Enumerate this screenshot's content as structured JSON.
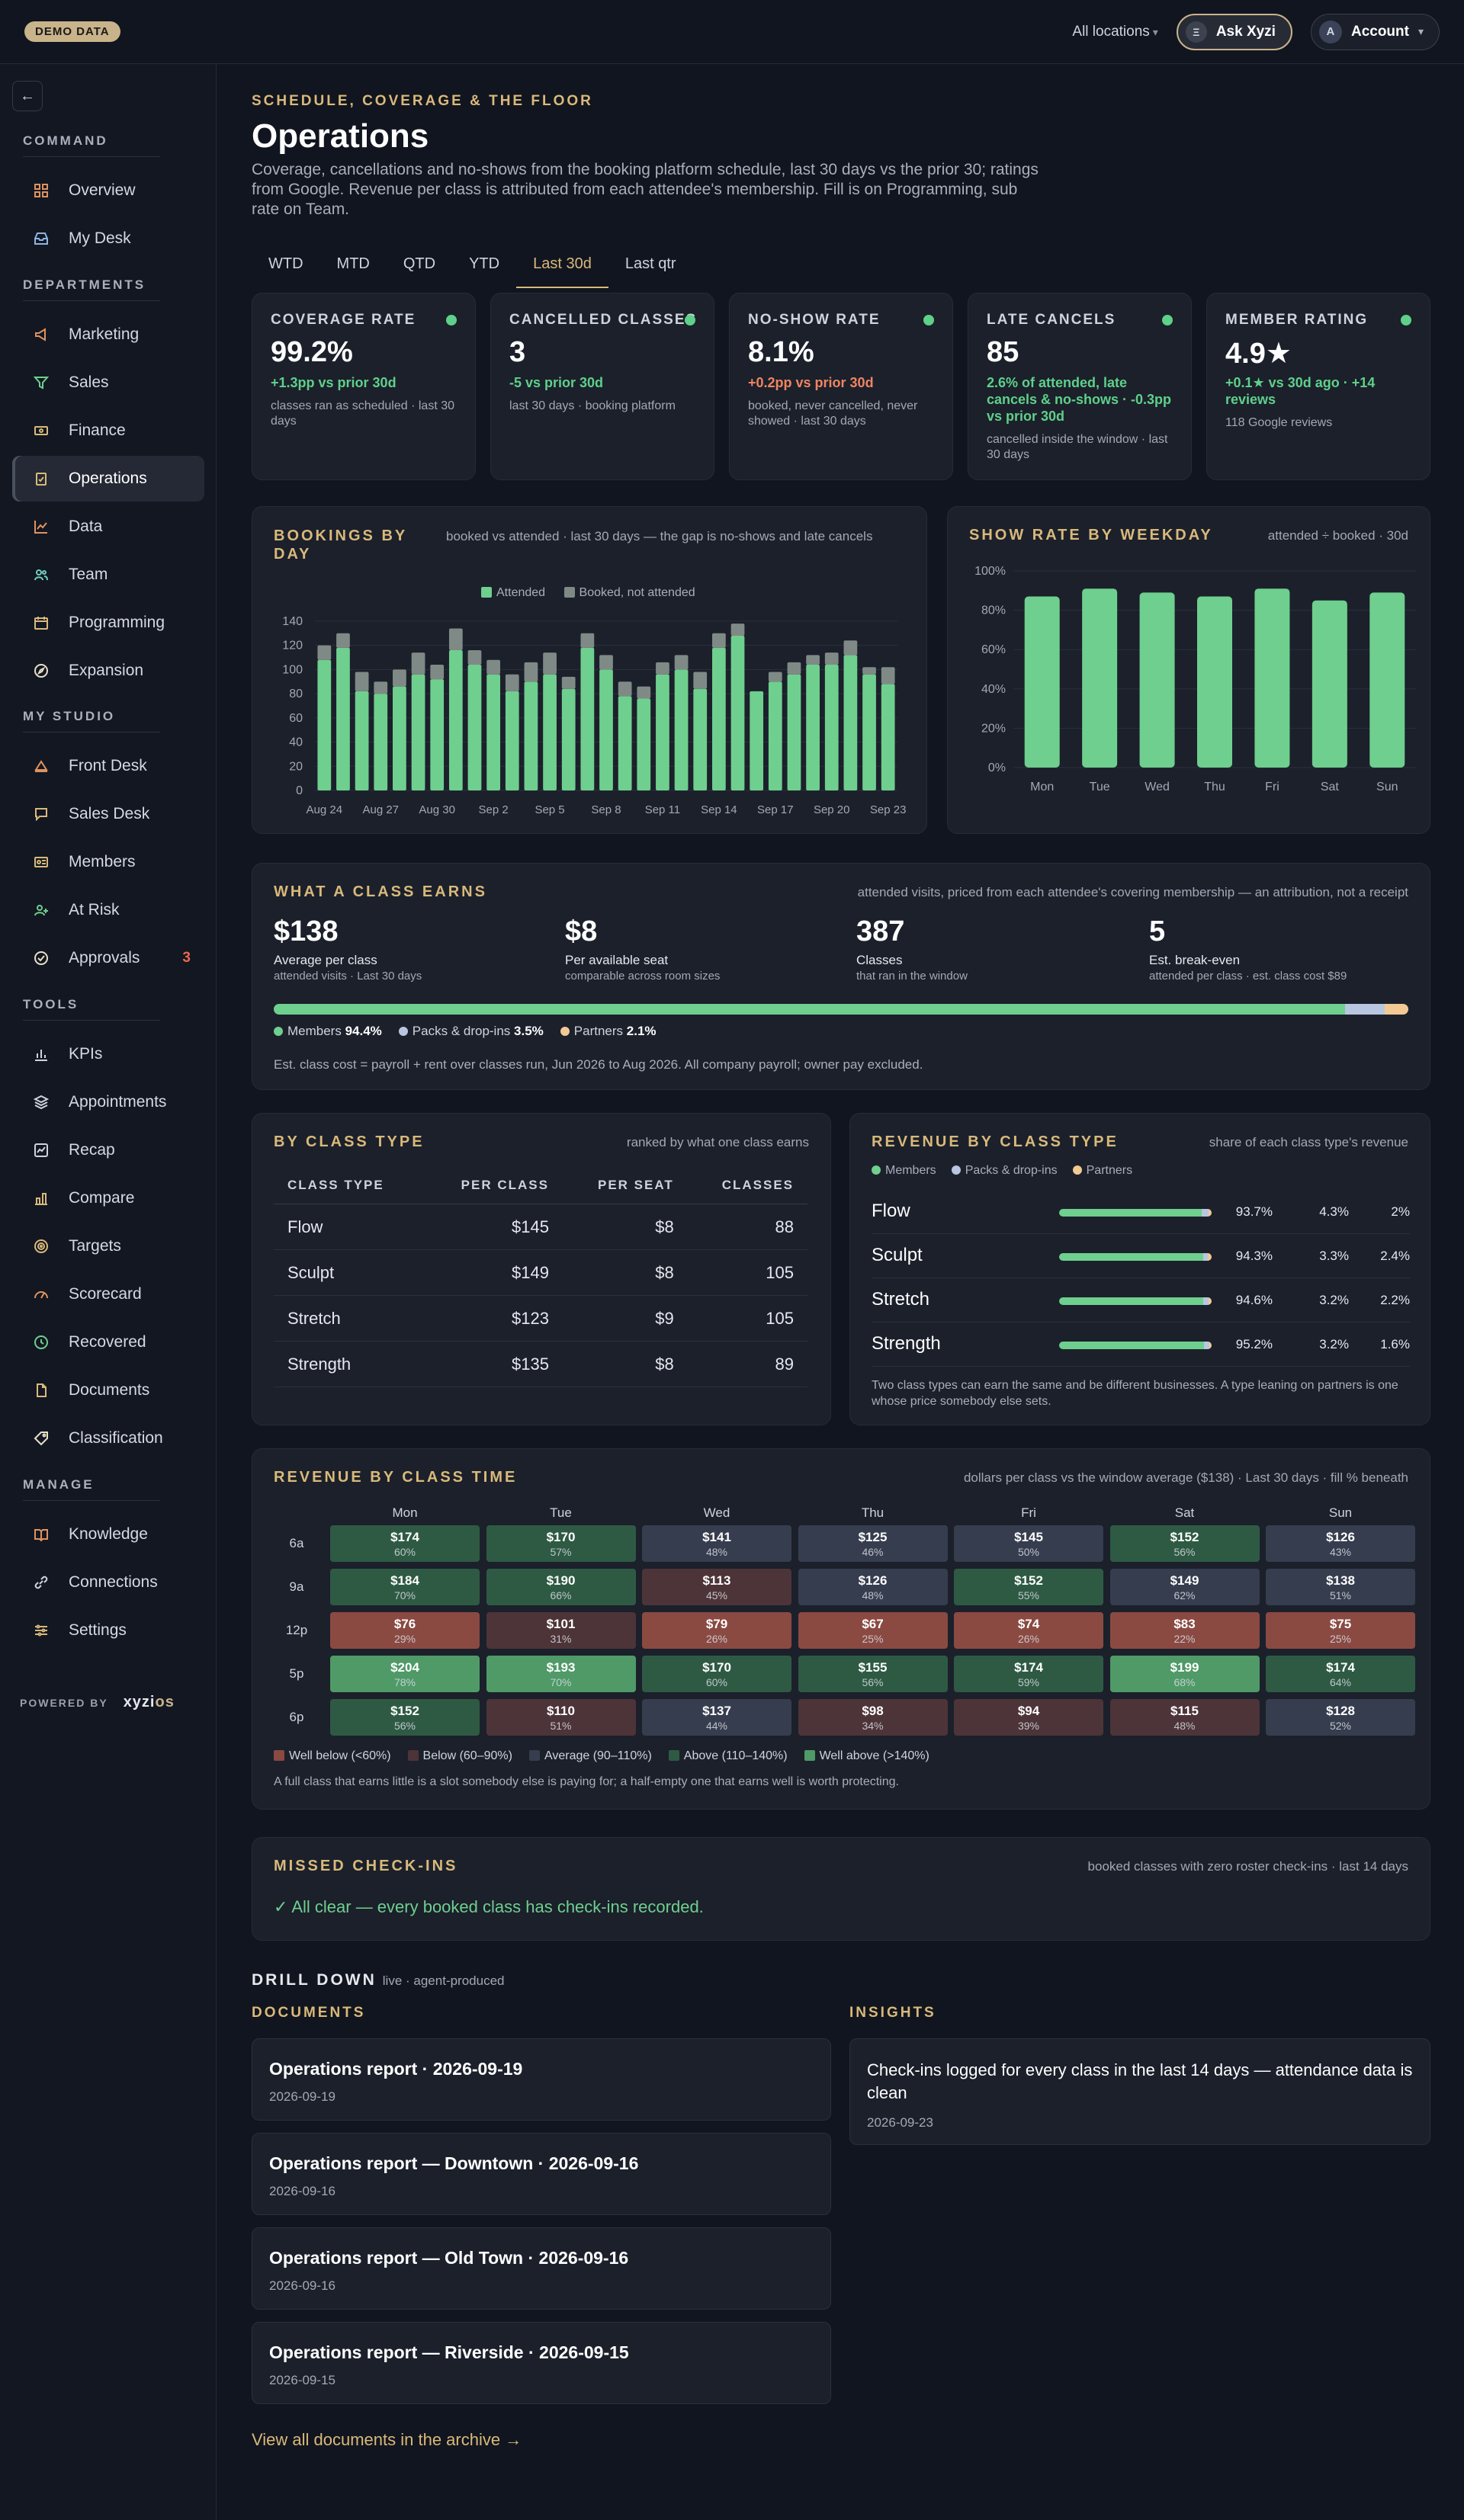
{
  "topbar": {
    "demo_badge": "DEMO DATA",
    "location": "All locations",
    "location_caret": "▾",
    "ask_label": "Ask Xyzi",
    "ask_icon": "Ξ",
    "account_initial": "A",
    "account_label": "Account",
    "account_caret": "▾"
  },
  "sidebar": {
    "back_icon": "←",
    "sections": {
      "command": "COMMAND",
      "departments": "DEPARTMENTS",
      "my_studio": "MY STUDIO",
      "tools": "TOOLS",
      "manage": "MANAGE"
    },
    "items": {
      "overview": "Overview",
      "my_desk": "My Desk",
      "marketing": "Marketing",
      "sales": "Sales",
      "finance": "Finance",
      "operations": "Operations",
      "data": "Data",
      "team": "Team",
      "programming": "Programming",
      "expansion": "Expansion",
      "front_desk": "Front Desk",
      "sales_desk": "Sales Desk",
      "members": "Members",
      "at_risk": "At Risk",
      "approvals": "Approvals",
      "approvals_badge": "3",
      "kpis": "KPIs",
      "appointments": "Appointments",
      "recap": "Recap",
      "compare": "Compare",
      "targets": "Targets",
      "scorecard": "Scorecard",
      "recovered": "Recovered",
      "documents": "Documents",
      "classification": "Classification",
      "knowledge": "Knowledge",
      "connections": "Connections",
      "settings": "Settings"
    },
    "powered_by": "POWERED BY",
    "brand_a": "xyzi",
    "brand_b": "os"
  },
  "header": {
    "eyebrow": "SCHEDULE, COVERAGE & THE FLOOR",
    "title": "Operations",
    "description": "Coverage, cancellations and no-shows from the booking platform schedule, last 30 days vs the prior 30; ratings from Google. Revenue per class is attributed from each attendee's membership. Fill is on Programming, sub rate on Team."
  },
  "tabs": [
    "WTD",
    "MTD",
    "QTD",
    "YTD",
    "Last 30d",
    "Last qtr"
  ],
  "kpis": [
    {
      "label": "COVERAGE RATE",
      "value": "99.2%",
      "delta": "+1.3pp vs prior 30d",
      "sub": "classes ran as scheduled · last 30 days"
    },
    {
      "label": "CANCELLED CLASSES",
      "value": "3",
      "delta": "-5 vs prior 30d",
      "sub": "last 30 days · booking platform"
    },
    {
      "label": "NO-SHOW RATE",
      "value": "8.1%",
      "delta": "+0.2pp vs prior 30d",
      "sub": "booked, never cancelled, never showed · last 30 days"
    },
    {
      "label": "LATE CANCELS",
      "value": "85",
      "delta": "2.6% of attended, late cancels & no-shows · -0.3pp vs prior 30d",
      "sub": "cancelled inside the window · last 30 days"
    },
    {
      "label": "MEMBER RATING",
      "value": "4.9★",
      "delta": "+0.1★ vs 30d ago · +14 reviews",
      "sub": "118 Google reviews"
    }
  ],
  "colors": {
    "accent": "#d9b97a",
    "attended": "#6fcf8e",
    "booked_not_attended": "#7f8a86",
    "members": "#6fcf8e",
    "packs": "#b8c6e0",
    "partners": "#f2c994",
    "good": "#5fd08a",
    "bad": "#ef8561"
  },
  "bookings": {
    "title": "BOOKINGS BY DAY",
    "note": "booked vs attended · last 30 days — the gap is no-shows and late cancels",
    "legend_attended": "Attended",
    "legend_booked": "Booked, not attended"
  },
  "showrate": {
    "title": "SHOW RATE BY WEEKDAY",
    "note": "attended ÷ booked · 30d"
  },
  "chart_data": [
    {
      "type": "bar",
      "stacked": true,
      "yticks": [
        "0",
        "20",
        "40",
        "60",
        "80",
        "100",
        "120",
        "140"
      ],
      "ylim": [
        0,
        145
      ],
      "x_tick_labels": [
        "Aug 24",
        "Aug 27",
        "Aug 30",
        "Sep 2",
        "Sep 5",
        "Sep 8",
        "Sep 11",
        "Sep 14",
        "Sep 17",
        "Sep 20",
        "Sep 23"
      ],
      "tick_every": 3,
      "series": [
        {
          "name": "Attended",
          "values": [
            108,
            118,
            82,
            80,
            86,
            96,
            92,
            116,
            104,
            96,
            82,
            90,
            96,
            84,
            118,
            100,
            78,
            76,
            96,
            100,
            84,
            118,
            128,
            82,
            90,
            96,
            104,
            104,
            112,
            96,
            88
          ]
        },
        {
          "name": "Booked, not attended",
          "values": [
            12,
            12,
            16,
            10,
            14,
            18,
            12,
            18,
            12,
            12,
            14,
            16,
            18,
            10,
            12,
            12,
            12,
            10,
            10,
            12,
            14,
            12,
            10,
            0,
            8,
            10,
            8,
            10,
            12,
            6,
            14
          ]
        }
      ],
      "grid": true
    },
    {
      "type": "bar",
      "categories": [
        "Mon",
        "Tue",
        "Wed",
        "Thu",
        "Fri",
        "Sat",
        "Sun"
      ],
      "values": [
        87,
        91,
        89,
        87,
        91,
        85,
        89
      ],
      "yticks": [
        "0%",
        "20%",
        "40%",
        "60%",
        "80%",
        "100%"
      ],
      "ylim": [
        0,
        100
      ],
      "grid": true
    }
  ],
  "earns": {
    "title": "WHAT A CLASS EARNS",
    "note": "attended visits, priced from each attendee's covering membership — an attribution, not a receipt",
    "stats": [
      {
        "value": "$138",
        "label": "Average per class",
        "sub": "attended visits · Last 30 days"
      },
      {
        "value": "$8",
        "label": "Per available seat",
        "sub": "comparable across room sizes"
      },
      {
        "value": "387",
        "label": "Classes",
        "sub": "that ran in the window"
      },
      {
        "value": "5",
        "label": "Est. break-even",
        "sub": "attended per class · est. class cost $89"
      }
    ],
    "mix": [
      {
        "name": "Members",
        "pct": "94.4%",
        "value": 94.4
      },
      {
        "name": "Packs & drop-ins",
        "pct": "3.5%",
        "value": 3.5
      },
      {
        "name": "Partners",
        "pct": "2.1%",
        "value": 2.1
      }
    ],
    "footnote": "Est. class cost = payroll + rent over classes run, Jun 2026 to Aug 2026. All company payroll; owner pay excluded."
  },
  "class_type": {
    "title": "BY CLASS TYPE",
    "note": "ranked by what one class earns",
    "columns": [
      "CLASS TYPE",
      "PER CLASS",
      "PER SEAT",
      "CLASSES"
    ],
    "rows": [
      [
        "Flow",
        "$145",
        "$8",
        "88"
      ],
      [
        "Sculpt",
        "$149",
        "$8",
        "105"
      ],
      [
        "Stretch",
        "$123",
        "$9",
        "105"
      ],
      [
        "Strength",
        "$135",
        "$8",
        "89"
      ]
    ]
  },
  "rev_type": {
    "title": "REVENUE BY CLASS TYPE",
    "note": "share of each class type's revenue",
    "legend": [
      "Members",
      "Packs & drop-ins",
      "Partners"
    ],
    "rows": [
      {
        "name": "Flow",
        "members": "93.7%",
        "packs": "4.3%",
        "partners": "2%",
        "m": 93.7,
        "p": 4.3,
        "r": 2.0
      },
      {
        "name": "Sculpt",
        "members": "94.3%",
        "packs": "3.3%",
        "partners": "2.4%",
        "m": 94.3,
        "p": 3.3,
        "r": 2.4
      },
      {
        "name": "Stretch",
        "members": "94.6%",
        "packs": "3.2%",
        "partners": "2.2%",
        "m": 94.6,
        "p": 3.2,
        "r": 2.2
      },
      {
        "name": "Strength",
        "members": "95.2%",
        "packs": "3.2%",
        "partners": "1.6%",
        "m": 95.2,
        "p": 3.2,
        "r": 1.6
      }
    ],
    "footnote": "Two class types can earn the same and be different businesses. A type leaning on partners is one whose price somebody else sets."
  },
  "heatmap": {
    "title": "REVENUE BY CLASS TIME",
    "note": "dollars per class vs the window average ($138) · Last 30 days · fill % beneath",
    "days": [
      "Mon",
      "Tue",
      "Wed",
      "Thu",
      "Fri",
      "Sat",
      "Sun"
    ],
    "times": [
      "6a",
      "9a",
      "12p",
      "5p",
      "6p"
    ],
    "cells": [
      [
        {
          "v": "$174",
          "f": "60%",
          "c": "above"
        },
        {
          "v": "$170",
          "f": "57%",
          "c": "above"
        },
        {
          "v": "$141",
          "f": "48%",
          "c": "avg"
        },
        {
          "v": "$125",
          "f": "46%",
          "c": "avg"
        },
        {
          "v": "$145",
          "f": "50%",
          "c": "avg"
        },
        {
          "v": "$152",
          "f": "56%",
          "c": "above"
        },
        {
          "v": "$126",
          "f": "43%",
          "c": "avg"
        }
      ],
      [
        {
          "v": "$184",
          "f": "70%",
          "c": "above"
        },
        {
          "v": "$190",
          "f": "66%",
          "c": "above"
        },
        {
          "v": "$113",
          "f": "45%",
          "c": "below"
        },
        {
          "v": "$126",
          "f": "48%",
          "c": "avg"
        },
        {
          "v": "$152",
          "f": "55%",
          "c": "above"
        },
        {
          "v": "$149",
          "f": "62%",
          "c": "avg"
        },
        {
          "v": "$138",
          "f": "51%",
          "c": "avg"
        }
      ],
      [
        {
          "v": "$76",
          "f": "29%",
          "c": "wbelow"
        },
        {
          "v": "$101",
          "f": "31%",
          "c": "below"
        },
        {
          "v": "$79",
          "f": "26%",
          "c": "wbelow"
        },
        {
          "v": "$67",
          "f": "25%",
          "c": "wbelow"
        },
        {
          "v": "$74",
          "f": "26%",
          "c": "wbelow"
        },
        {
          "v": "$83",
          "f": "22%",
          "c": "wbelow"
        },
        {
          "v": "$75",
          "f": "25%",
          "c": "wbelow"
        }
      ],
      [
        {
          "v": "$204",
          "f": "78%",
          "c": "wabove"
        },
        {
          "v": "$193",
          "f": "70%",
          "c": "wabove"
        },
        {
          "v": "$170",
          "f": "60%",
          "c": "above"
        },
        {
          "v": "$155",
          "f": "56%",
          "c": "above"
        },
        {
          "v": "$174",
          "f": "59%",
          "c": "above"
        },
        {
          "v": "$199",
          "f": "68%",
          "c": "wabove"
        },
        {
          "v": "$174",
          "f": "64%",
          "c": "above"
        }
      ],
      [
        {
          "v": "$152",
          "f": "56%",
          "c": "above"
        },
        {
          "v": "$110",
          "f": "51%",
          "c": "below"
        },
        {
          "v": "$137",
          "f": "44%",
          "c": "avg"
        },
        {
          "v": "$98",
          "f": "34%",
          "c": "below"
        },
        {
          "v": "$94",
          "f": "39%",
          "c": "below"
        },
        {
          "v": "$115",
          "f": "48%",
          "c": "below"
        },
        {
          "v": "$128",
          "f": "52%",
          "c": "avg"
        }
      ]
    ],
    "legend": [
      "Well below (<60%)",
      "Below (60–90%)",
      "Average (90–110%)",
      "Above (110–140%)",
      "Well above (>140%)"
    ],
    "footnote": "A full class that earns little is a slot somebody else is paying for; a half-empty one that earns well is worth protecting."
  },
  "missed": {
    "title": "MISSED CHECK-INS",
    "note": "booked classes with zero roster check-ins · last 14 days",
    "status": "✓ All clear — every booked class has check-ins recorded."
  },
  "drill": {
    "title": "DRILL DOWN",
    "sub": "live · agent-produced",
    "documents_title": "DOCUMENTS",
    "insights_title": "INSIGHTS",
    "documents": [
      {
        "title": "Operations report · 2026-09-19",
        "date": "2026-09-19"
      },
      {
        "title": "Operations report — Downtown · 2026-09-16",
        "date": "2026-09-16"
      },
      {
        "title": "Operations report — Old Town · 2026-09-16",
        "date": "2026-09-16"
      },
      {
        "title": "Operations report — Riverside · 2026-09-15",
        "date": "2026-09-15"
      }
    ],
    "insight": {
      "title": "Check-ins logged for every class in the last 14 days — attendance data is clean",
      "date": "2026-09-23"
    },
    "archive_link": "View all documents in the archive →"
  }
}
